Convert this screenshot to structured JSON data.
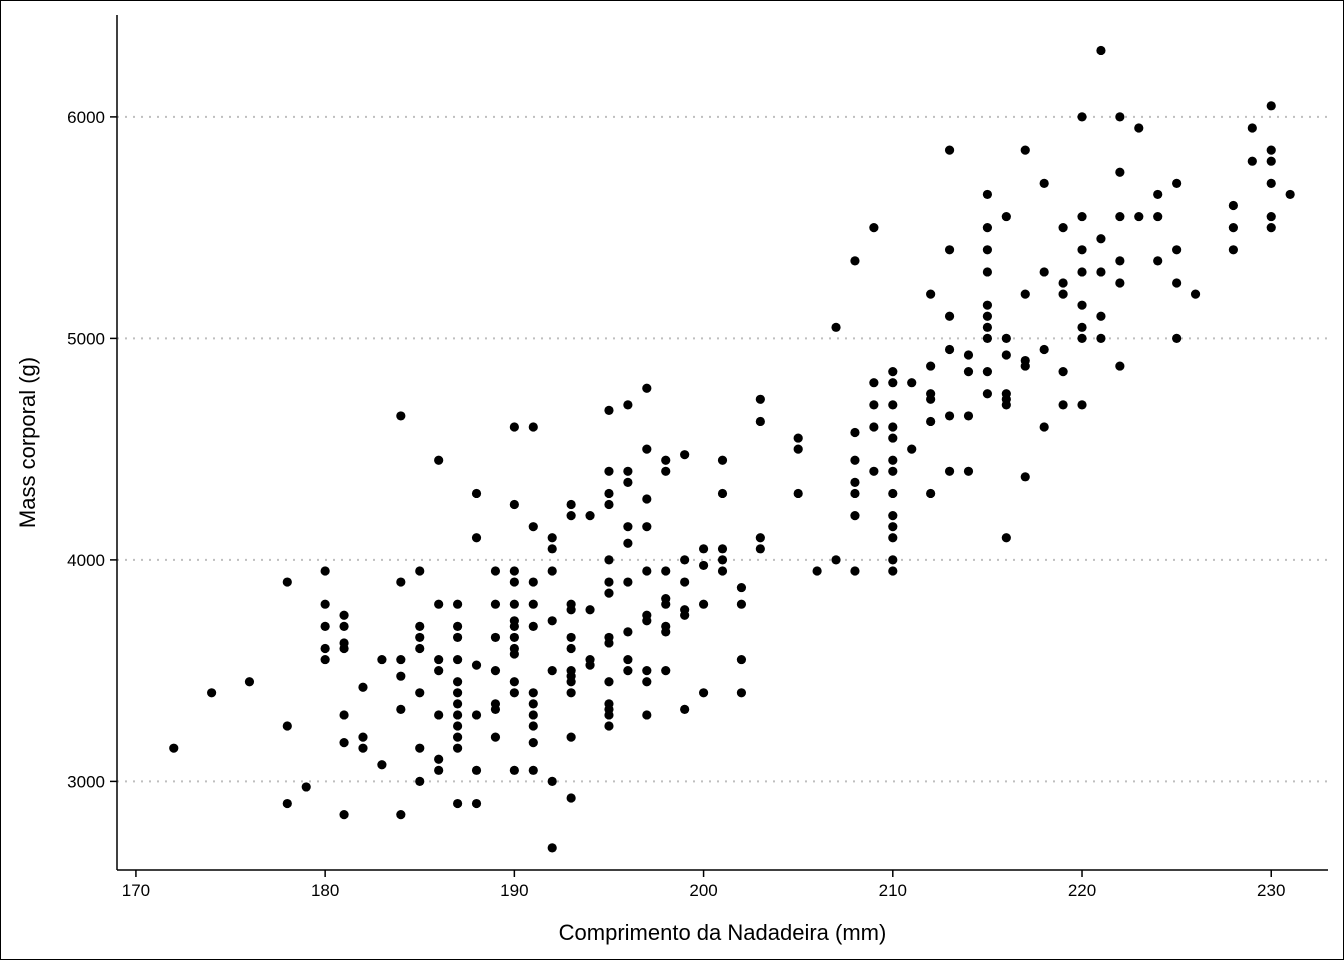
{
  "chart_data": {
    "type": "scatter",
    "title": "",
    "xlabel": "Comprimento da Nadadeira (mm)",
    "ylabel": "Mass corporal (g)",
    "xlim": [
      169,
      233
    ],
    "ylim": [
      2600,
      6460
    ],
    "x_ticks": [
      170,
      180,
      190,
      200,
      210,
      220,
      230
    ],
    "y_ticks": [
      3000,
      4000,
      5000,
      6000
    ],
    "grid": "horizontal dotted at y ticks",
    "legend": "none",
    "colors": {
      "points": "#000000",
      "grid": "#bfbfbf",
      "axis": "#000000"
    },
    "points": [
      [
        172,
        3150
      ],
      [
        174,
        3400
      ],
      [
        176,
        3450
      ],
      [
        178,
        3900
      ],
      [
        178,
        3250
      ],
      [
        178,
        2900
      ],
      [
        179,
        2975
      ],
      [
        180,
        3950
      ],
      [
        180,
        3800
      ],
      [
        180,
        3700
      ],
      [
        180,
        3600
      ],
      [
        180,
        3550
      ],
      [
        181,
        3750
      ],
      [
        181,
        3700
      ],
      [
        181,
        3625
      ],
      [
        181,
        3600
      ],
      [
        181,
        3300
      ],
      [
        181,
        3175
      ],
      [
        181,
        2850
      ],
      [
        182,
        3425
      ],
      [
        182,
        3200
      ],
      [
        182,
        3150
      ],
      [
        183,
        3550
      ],
      [
        183,
        3075
      ],
      [
        184,
        4650
      ],
      [
        184,
        3900
      ],
      [
        184,
        3550
      ],
      [
        184,
        3475
      ],
      [
        184,
        3325
      ],
      [
        184,
        2850
      ],
      [
        185,
        3950
      ],
      [
        185,
        3700
      ],
      [
        185,
        3650
      ],
      [
        185,
        3600
      ],
      [
        185,
        3400
      ],
      [
        185,
        3150
      ],
      [
        185,
        3000
      ],
      [
        186,
        4450
      ],
      [
        186,
        3800
      ],
      [
        186,
        3550
      ],
      [
        186,
        3500
      ],
      [
        186,
        3300
      ],
      [
        186,
        3100
      ],
      [
        186,
        3050
      ],
      [
        187,
        3800
      ],
      [
        187,
        3700
      ],
      [
        187,
        3650
      ],
      [
        187,
        3550
      ],
      [
        187,
        3450
      ],
      [
        187,
        3400
      ],
      [
        187,
        3350
      ],
      [
        187,
        3300
      ],
      [
        187,
        3250
      ],
      [
        187,
        3200
      ],
      [
        187,
        3150
      ],
      [
        187,
        2900
      ],
      [
        188,
        4300
      ],
      [
        188,
        4100
      ],
      [
        188,
        3525
      ],
      [
        188,
        3300
      ],
      [
        188,
        3050
      ],
      [
        188,
        2900
      ],
      [
        189,
        3950
      ],
      [
        189,
        3800
      ],
      [
        189,
        3650
      ],
      [
        189,
        3500
      ],
      [
        189,
        3350
      ],
      [
        189,
        3325
      ],
      [
        189,
        3200
      ],
      [
        190,
        4600
      ],
      [
        190,
        4250
      ],
      [
        190,
        3950
      ],
      [
        190,
        3900
      ],
      [
        190,
        3800
      ],
      [
        190,
        3725
      ],
      [
        190,
        3700
      ],
      [
        190,
        3650
      ],
      [
        190,
        3600
      ],
      [
        190,
        3575
      ],
      [
        190,
        3450
      ],
      [
        190,
        3400
      ],
      [
        190,
        3050
      ],
      [
        191,
        4600
      ],
      [
        191,
        4150
      ],
      [
        191,
        3900
      ],
      [
        191,
        3800
      ],
      [
        191,
        3700
      ],
      [
        191,
        3400
      ],
      [
        191,
        3350
      ],
      [
        191,
        3300
      ],
      [
        191,
        3250
      ],
      [
        191,
        3175
      ],
      [
        191,
        3050
      ],
      [
        192,
        4100
      ],
      [
        192,
        4050
      ],
      [
        192,
        3950
      ],
      [
        192,
        3725
      ],
      [
        192,
        3500
      ],
      [
        192,
        3000
      ],
      [
        192,
        2700
      ],
      [
        193,
        4250
      ],
      [
        193,
        4200
      ],
      [
        193,
        3800
      ],
      [
        193,
        3775
      ],
      [
        193,
        3650
      ],
      [
        193,
        3600
      ],
      [
        193,
        3500
      ],
      [
        193,
        3475
      ],
      [
        193,
        3450
      ],
      [
        193,
        3400
      ],
      [
        193,
        3200
      ],
      [
        193,
        2925
      ],
      [
        194,
        4200
      ],
      [
        194,
        3775
      ],
      [
        194,
        3550
      ],
      [
        194,
        3525
      ],
      [
        195,
        4675
      ],
      [
        195,
        4400
      ],
      [
        195,
        4300
      ],
      [
        195,
        4250
      ],
      [
        195,
        4000
      ],
      [
        195,
        3900
      ],
      [
        195,
        3850
      ],
      [
        195,
        3650
      ],
      [
        195,
        3625
      ],
      [
        195,
        3450
      ],
      [
        195,
        3350
      ],
      [
        195,
        3325
      ],
      [
        195,
        3300
      ],
      [
        195,
        3250
      ],
      [
        196,
        4700
      ],
      [
        196,
        4400
      ],
      [
        196,
        4350
      ],
      [
        196,
        4150
      ],
      [
        196,
        4075
      ],
      [
        196,
        3900
      ],
      [
        196,
        3675
      ],
      [
        196,
        3550
      ],
      [
        196,
        3500
      ],
      [
        197,
        4775
      ],
      [
        197,
        4500
      ],
      [
        197,
        4275
      ],
      [
        197,
        4150
      ],
      [
        197,
        3950
      ],
      [
        197,
        3750
      ],
      [
        197,
        3725
      ],
      [
        197,
        3500
      ],
      [
        197,
        3450
      ],
      [
        197,
        3300
      ],
      [
        198,
        4450
      ],
      [
        198,
        4400
      ],
      [
        198,
        3950
      ],
      [
        198,
        3825
      ],
      [
        198,
        3800
      ],
      [
        198,
        3700
      ],
      [
        198,
        3675
      ],
      [
        198,
        3500
      ],
      [
        199,
        4475
      ],
      [
        199,
        4000
      ],
      [
        199,
        3900
      ],
      [
        199,
        3775
      ],
      [
        199,
        3750
      ],
      [
        199,
        3325
      ],
      [
        200,
        4050
      ],
      [
        200,
        3975
      ],
      [
        200,
        3800
      ],
      [
        200,
        3400
      ],
      [
        201,
        4450
      ],
      [
        201,
        4300
      ],
      [
        201,
        4050
      ],
      [
        201,
        4000
      ],
      [
        201,
        3950
      ],
      [
        202,
        3875
      ],
      [
        202,
        3800
      ],
      [
        202,
        3550
      ],
      [
        202,
        3400
      ],
      [
        203,
        4725
      ],
      [
        203,
        4625
      ],
      [
        203,
        4100
      ],
      [
        203,
        4050
      ],
      [
        205,
        4550
      ],
      [
        205,
        4500
      ],
      [
        205,
        4300
      ],
      [
        206,
        3950
      ],
      [
        207,
        5050
      ],
      [
        207,
        4000
      ],
      [
        208,
        5350
      ],
      [
        208,
        4575
      ],
      [
        208,
        4450
      ],
      [
        208,
        4350
      ],
      [
        208,
        4300
      ],
      [
        208,
        4200
      ],
      [
        208,
        3950
      ],
      [
        209,
        5500
      ],
      [
        209,
        4800
      ],
      [
        209,
        4700
      ],
      [
        209,
        4600
      ],
      [
        209,
        4400
      ],
      [
        210,
        4850
      ],
      [
        210,
        4800
      ],
      [
        210,
        4700
      ],
      [
        210,
        4600
      ],
      [
        210,
        4550
      ],
      [
        210,
        4450
      ],
      [
        210,
        4400
      ],
      [
        210,
        4300
      ],
      [
        210,
        4200
      ],
      [
        210,
        4150
      ],
      [
        210,
        4100
      ],
      [
        210,
        4000
      ],
      [
        210,
        3950
      ],
      [
        211,
        4800
      ],
      [
        211,
        4500
      ],
      [
        212,
        5200
      ],
      [
        212,
        4875
      ],
      [
        212,
        4750
      ],
      [
        212,
        4725
      ],
      [
        212,
        4625
      ],
      [
        212,
        4300
      ],
      [
        213,
        5850
      ],
      [
        213,
        5400
      ],
      [
        213,
        5100
      ],
      [
        213,
        4950
      ],
      [
        213,
        4650
      ],
      [
        213,
        4400
      ],
      [
        214,
        4925
      ],
      [
        214,
        4850
      ],
      [
        214,
        4650
      ],
      [
        214,
        4400
      ],
      [
        215,
        5650
      ],
      [
        215,
        5500
      ],
      [
        215,
        5400
      ],
      [
        215,
        5300
      ],
      [
        215,
        5150
      ],
      [
        215,
        5100
      ],
      [
        215,
        5050
      ],
      [
        215,
        5000
      ],
      [
        215,
        4850
      ],
      [
        215,
        4750
      ],
      [
        216,
        5550
      ],
      [
        216,
        5000
      ],
      [
        216,
        4925
      ],
      [
        216,
        4750
      ],
      [
        216,
        4725
      ],
      [
        216,
        4700
      ],
      [
        216,
        4100
      ],
      [
        217,
        5850
      ],
      [
        217,
        5200
      ],
      [
        217,
        4900
      ],
      [
        217,
        4875
      ],
      [
        217,
        4375
      ],
      [
        218,
        5700
      ],
      [
        218,
        5300
      ],
      [
        218,
        4950
      ],
      [
        218,
        4600
      ],
      [
        219,
        5500
      ],
      [
        219,
        5250
      ],
      [
        219,
        5200
      ],
      [
        219,
        4850
      ],
      [
        219,
        4700
      ],
      [
        220,
        6000
      ],
      [
        220,
        5550
      ],
      [
        220,
        5400
      ],
      [
        220,
        5300
      ],
      [
        220,
        5150
      ],
      [
        220,
        5050
      ],
      [
        220,
        5000
      ],
      [
        220,
        4700
      ],
      [
        221,
        6300
      ],
      [
        221,
        5450
      ],
      [
        221,
        5300
      ],
      [
        221,
        5100
      ],
      [
        221,
        5000
      ],
      [
        222,
        6000
      ],
      [
        222,
        5750
      ],
      [
        222,
        5550
      ],
      [
        222,
        5350
      ],
      [
        222,
        5250
      ],
      [
        222,
        4875
      ],
      [
        223,
        5950
      ],
      [
        223,
        5550
      ],
      [
        224,
        5650
      ],
      [
        224,
        5550
      ],
      [
        224,
        5350
      ],
      [
        225,
        5700
      ],
      [
        225,
        5400
      ],
      [
        225,
        5250
      ],
      [
        225,
        5000
      ],
      [
        226,
        5200
      ],
      [
        228,
        5600
      ],
      [
        228,
        5500
      ],
      [
        228,
        5400
      ],
      [
        229,
        5950
      ],
      [
        229,
        5800
      ],
      [
        230,
        6050
      ],
      [
        230,
        5850
      ],
      [
        230,
        5800
      ],
      [
        230,
        5700
      ],
      [
        230,
        5550
      ],
      [
        230,
        5500
      ],
      [
        231,
        5650
      ]
    ]
  }
}
